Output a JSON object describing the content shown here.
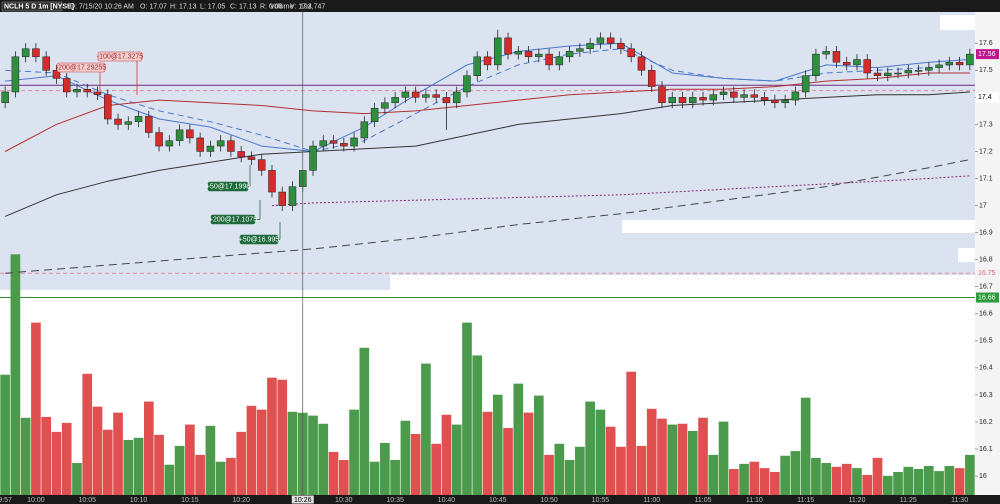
{
  "chart_data": {
    "type": "candlestick",
    "symbol": "NCLH 5 D 1m [NYSE]",
    "header": [
      "D: 7/15/20 10:26 AM",
      "O: 17.07",
      "H: 17.13",
      "L: 17.05",
      "C: 17.13",
      "R: 0.08",
      "V: 17.4"
    ],
    "volume_title": "Volume",
    "volume_readout": "192,747",
    "categories": [
      "9:57",
      null,
      null,
      "10:00",
      null,
      null,
      null,
      null,
      "10:05",
      null,
      null,
      null,
      null,
      "10:10",
      null,
      null,
      null,
      null,
      "10:15",
      null,
      null,
      null,
      null,
      "10:20",
      null,
      null,
      null,
      null,
      null,
      "10:26",
      null,
      null,
      null,
      "10:30",
      null,
      null,
      null,
      null,
      "10:35",
      null,
      null,
      null,
      null,
      "10:40",
      null,
      null,
      null,
      null,
      "10:45",
      null,
      null,
      null,
      null,
      "10:50",
      null,
      null,
      null,
      null,
      "10:55",
      null,
      null,
      null,
      null,
      "11:00",
      null,
      null,
      null,
      null,
      "11:05",
      null,
      null,
      null,
      null,
      "11:10",
      null,
      null,
      null,
      null,
      "11:15",
      null,
      null,
      null,
      null,
      "11:20",
      null,
      null,
      null,
      null,
      "11:25",
      null,
      null,
      null,
      null,
      "11:30",
      null
    ],
    "cursor_index": 29,
    "open": [
      17.38,
      17.42,
      17.55,
      17.58,
      17.55,
      17.5,
      17.47,
      17.42,
      17.43,
      17.42,
      17.41,
      17.32,
      17.3,
      17.31,
      17.33,
      17.27,
      17.22,
      17.24,
      17.28,
      17.25,
      17.2,
      17.22,
      17.24,
      17.2,
      17.18,
      17.17,
      17.13,
      17.05,
      17.0,
      17.07,
      17.13,
      17.22,
      17.24,
      17.23,
      17.22,
      17.25,
      17.31,
      17.36,
      17.38,
      17.4,
      17.42,
      17.4,
      17.41,
      17.4,
      17.38,
      17.42,
      17.48,
      17.55,
      17.52,
      17.62,
      17.56,
      17.57,
      17.55,
      17.56,
      17.52,
      17.55,
      17.57,
      17.58,
      17.6,
      17.62,
      17.6,
      17.58,
      17.55,
      17.5,
      17.44,
      17.38,
      17.4,
      17.38,
      17.4,
      17.39,
      17.41,
      17.42,
      17.4,
      17.41,
      17.4,
      17.39,
      17.38,
      17.39,
      17.42,
      17.48,
      17.56,
      17.57,
      17.53,
      17.52,
      17.54,
      17.49,
      17.48,
      17.49,
      17.49,
      17.5,
      17.5,
      17.51,
      17.52,
      17.53,
      17.52
    ],
    "high": [
      17.44,
      17.57,
      17.6,
      17.6,
      17.57,
      17.52,
      17.49,
      17.45,
      17.45,
      17.44,
      17.43,
      17.34,
      17.33,
      17.35,
      17.35,
      17.29,
      17.26,
      17.3,
      17.3,
      17.27,
      17.24,
      17.26,
      17.26,
      17.22,
      17.2,
      17.19,
      17.15,
      17.07,
      17.09,
      17.13,
      17.24,
      17.26,
      17.26,
      17.25,
      17.27,
      17.33,
      17.38,
      17.4,
      17.42,
      17.44,
      17.44,
      17.43,
      17.43,
      17.42,
      17.44,
      17.5,
      17.57,
      17.57,
      17.65,
      17.64,
      17.59,
      17.59,
      17.58,
      17.58,
      17.57,
      17.59,
      17.6,
      17.62,
      17.64,
      17.64,
      17.62,
      17.6,
      17.57,
      17.52,
      17.46,
      17.42,
      17.42,
      17.42,
      17.42,
      17.43,
      17.44,
      17.44,
      17.43,
      17.43,
      17.42,
      17.41,
      17.41,
      17.44,
      17.5,
      17.58,
      17.59,
      17.59,
      17.55,
      17.56,
      17.56,
      17.51,
      17.51,
      17.51,
      17.52,
      17.52,
      17.53,
      17.54,
      17.55,
      17.55,
      17.58
    ],
    "low": [
      17.36,
      17.4,
      17.53,
      17.53,
      17.48,
      17.45,
      17.4,
      17.4,
      17.4,
      17.39,
      17.3,
      17.28,
      17.28,
      17.29,
      17.25,
      17.2,
      17.2,
      17.22,
      17.23,
      17.18,
      17.18,
      17.2,
      17.18,
      17.16,
      17.15,
      17.11,
      17.03,
      16.98,
      16.98,
      17.05,
      17.11,
      17.2,
      17.21,
      17.2,
      17.2,
      17.23,
      17.29,
      17.34,
      17.36,
      17.38,
      17.38,
      17.38,
      17.38,
      17.28,
      17.36,
      17.4,
      17.46,
      17.5,
      17.5,
      17.54,
      17.54,
      17.53,
      17.53,
      17.5,
      17.5,
      17.53,
      17.55,
      17.56,
      17.58,
      17.58,
      17.56,
      17.53,
      17.48,
      17.42,
      17.36,
      17.36,
      17.36,
      17.36,
      17.37,
      17.37,
      17.39,
      17.38,
      17.38,
      17.38,
      17.37,
      17.36,
      17.36,
      17.37,
      17.4,
      17.46,
      17.54,
      17.51,
      17.5,
      17.5,
      17.47,
      17.46,
      17.46,
      17.47,
      17.47,
      17.48,
      17.48,
      17.49,
      17.5,
      17.5,
      17.5
    ],
    "close": [
      17.42,
      17.55,
      17.58,
      17.55,
      17.5,
      17.47,
      17.42,
      17.43,
      17.42,
      17.41,
      17.32,
      17.3,
      17.31,
      17.33,
      17.27,
      17.22,
      17.24,
      17.28,
      17.25,
      17.2,
      17.22,
      17.24,
      17.2,
      17.18,
      17.17,
      17.13,
      17.05,
      17.0,
      17.07,
      17.13,
      17.22,
      17.24,
      17.23,
      17.22,
      17.25,
      17.31,
      17.36,
      17.38,
      17.4,
      17.42,
      17.4,
      17.41,
      17.4,
      17.38,
      17.42,
      17.48,
      17.55,
      17.52,
      17.62,
      17.56,
      17.57,
      17.55,
      17.56,
      17.52,
      17.55,
      17.57,
      17.58,
      17.6,
      17.62,
      17.6,
      17.58,
      17.55,
      17.5,
      17.44,
      17.38,
      17.4,
      17.38,
      17.4,
      17.39,
      17.41,
      17.42,
      17.4,
      17.41,
      17.4,
      17.39,
      17.38,
      17.39,
      17.42,
      17.48,
      17.56,
      17.57,
      17.53,
      17.52,
      17.54,
      17.49,
      17.48,
      17.49,
      17.49,
      17.5,
      17.5,
      17.51,
      17.52,
      17.53,
      17.52,
      17.56
    ],
    "volume": [
      282000,
      564000,
      181000,
      404000,
      183000,
      148000,
      169000,
      75000,
      284000,
      207000,
      153000,
      193000,
      129000,
      134000,
      219000,
      141000,
      71000,
      115000,
      165000,
      94000,
      162000,
      78000,
      87000,
      148000,
      209000,
      200000,
      275000,
      270000,
      195000,
      192747,
      186000,
      167000,
      101000,
      82000,
      200000,
      345000,
      78000,
      122000,
      82000,
      174000,
      143000,
      308000,
      120000,
      188000,
      165000,
      404000,
      327000,
      195000,
      235000,
      157000,
      261000,
      193000,
      233000,
      94000,
      120000,
      82000,
      113000,
      219000,
      200000,
      160000,
      113000,
      289000,
      115000,
      202000,
      179000,
      165000,
      167000,
      150000,
      181000,
      94000,
      172000,
      61000,
      73000,
      78000,
      63000,
      54000,
      92000,
      103000,
      228000,
      87000,
      75000,
      66000,
      73000,
      63000,
      47000,
      87000,
      45000,
      54000,
      66000,
      61000,
      68000,
      56000,
      68000,
      63000,
      94000
    ],
    "up_color": "#2f8f3f",
    "down_color": "#d42b2b",
    "volume_up_color": "#4c9a4c",
    "volume_down_color": "#e05050",
    "ylim": [
      15.93,
      17.76
    ],
    "volume_lim": [
      0,
      1160000
    ],
    "yticks": [
      17.6,
      17.5,
      17.4,
      17.3,
      17.2,
      17.1,
      17,
      16.9,
      16.8,
      16.7,
      16.6,
      16.5,
      16.4,
      16.3,
      16.2,
      16.1,
      16
    ],
    "lines": [
      {
        "color": "#4a78d0",
        "dash": "",
        "x": [
          0,
          5,
          10,
          15,
          20,
          25,
          30,
          35,
          40,
          45,
          50,
          55,
          60,
          65,
          70,
          75,
          80,
          85,
          90,
          94
        ],
        "values": [
          17.46,
          17.48,
          17.39,
          17.32,
          17.29,
          17.22,
          17.2,
          17.29,
          17.41,
          17.52,
          17.57,
          17.59,
          17.6,
          17.49,
          17.47,
          17.46,
          17.52,
          17.51,
          17.53,
          17.54
        ]
      },
      {
        "color": "#4a78d0",
        "dash": "6 4",
        "x": [
          0,
          5,
          10,
          15,
          20,
          25,
          30,
          35,
          40,
          45,
          50,
          55,
          60,
          65,
          70,
          75,
          80,
          85,
          90,
          94
        ],
        "values": [
          17.5,
          17.49,
          17.41,
          17.35,
          17.31,
          17.26,
          17.2,
          17.24,
          17.34,
          17.44,
          17.52,
          17.56,
          17.58,
          17.5,
          17.47,
          17.46,
          17.49,
          17.5,
          17.51,
          17.53
        ]
      },
      {
        "color": "#b03030",
        "dash": "",
        "x": [
          0,
          5,
          10,
          15,
          20,
          25,
          30,
          35,
          40,
          45,
          50,
          55,
          60,
          65,
          70,
          75,
          80,
          85,
          90,
          94
        ],
        "values": [
          17.2,
          17.3,
          17.37,
          17.39,
          17.38,
          17.37,
          17.35,
          17.34,
          17.35,
          17.37,
          17.39,
          17.41,
          17.42,
          17.43,
          17.43,
          17.44,
          17.46,
          17.47,
          17.49,
          17.49
        ]
      },
      {
        "color": "#333333",
        "dash": "",
        "x": [
          0,
          5,
          10,
          15,
          20,
          25,
          30,
          35,
          40,
          45,
          50,
          55,
          60,
          65,
          70,
          75,
          80,
          85,
          90,
          94
        ],
        "values": [
          16.96,
          17.04,
          17.09,
          17.13,
          17.16,
          17.19,
          17.2,
          17.21,
          17.22,
          17.26,
          17.3,
          17.32,
          17.34,
          17.37,
          17.38,
          17.39,
          17.4,
          17.41,
          17.41,
          17.42
        ]
      },
      {
        "color": "#7a2a6a",
        "dash": "2 2",
        "x": [
          26,
          30,
          40,
          50,
          60,
          70,
          80,
          90,
          94
        ],
        "values": [
          17.0,
          17.01,
          17.02,
          17.03,
          17.04,
          17.06,
          17.08,
          17.1,
          17.11
        ]
      },
      {
        "color": "#444444",
        "dash": "8 5",
        "x": [
          0,
          10,
          20,
          30,
          40,
          50,
          60,
          70,
          80,
          90,
          94
        ],
        "values": [
          16.75,
          16.78,
          16.81,
          16.84,
          16.88,
          16.93,
          16.97,
          17.02,
          17.07,
          17.14,
          17.17
        ]
      }
    ],
    "levels": [
      {
        "value": 17.445,
        "color": "#6a2c7a",
        "dash": ""
      },
      {
        "value": 17.425,
        "color": "#e08aa0",
        "dash": "4 3"
      },
      {
        "value": 16.75,
        "color": "#e08aa0",
        "dash": "4 3"
      },
      {
        "value": 16.66,
        "color": "#2e8b2e",
        "dash": ""
      }
    ],
    "price_labels": [
      {
        "value": 17.56,
        "bg": "#c0188c",
        "fg": "#ffffff"
      },
      {
        "value": 17.4,
        "bg": "#ffffff",
        "fg": "#000000"
      },
      {
        "value": 16.75,
        "bg": "#f4f4f4",
        "fg": "#e06070"
      },
      {
        "value": 16.66,
        "bg": "#2e9b3e",
        "fg": "#ffffff"
      }
    ],
    "trades": [
      {
        "text": "-100@17.3275",
        "color": "#c83a3a"
      },
      {
        "text": "-200@17.29255",
        "color": "#c83a3a"
      },
      {
        "text": "+50@17.1998",
        "color": "#1e6a3a"
      },
      {
        "text": "+200@17.1075",
        "color": "#1e6a3a"
      },
      {
        "text": "+50@16.995",
        "color": "#1e6a3a"
      }
    ]
  }
}
